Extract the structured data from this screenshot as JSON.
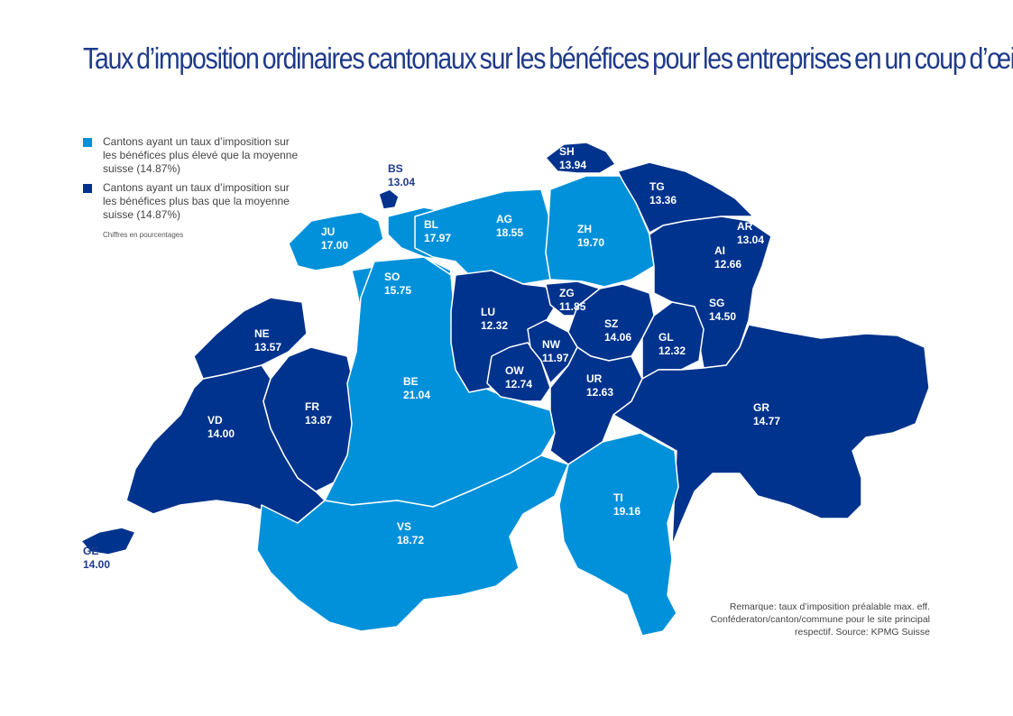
{
  "title": "Taux d’imposition ordinaires cantonaux sur les bénéfices pour les entreprises en un coup d’œil",
  "colors": {
    "higher": "#0091da",
    "lower": "#00338d",
    "border": "#ffffff",
    "title": "#1e3a8a"
  },
  "legend": {
    "higher": "Cantons ayant un taux d’imposition sur les bénéfices plus élevé que la moyenne suisse (14.87%)",
    "lower": "Cantons ayant un taux d’imposition sur les bénéfices plus bas que la moyenne suisse (14.87%)",
    "note": "Chiffres en pourcentages"
  },
  "remark": "Remarque: taux d’imposition préalable max. eff. Conféderaton/canton/commune pour le site principal respectif. Source: KPMG Suisse",
  "cantons": [
    {
      "id": "GE",
      "code": "GE",
      "rate": "14.00",
      "category": "lower"
    },
    {
      "id": "VD",
      "code": "VD",
      "rate": "14.00",
      "category": "lower"
    },
    {
      "id": "NE",
      "code": "NE",
      "rate": "13.57",
      "category": "lower"
    },
    {
      "id": "FR",
      "code": "FR",
      "rate": "13.87",
      "category": "lower"
    },
    {
      "id": "JU",
      "code": "JU",
      "rate": "17.00",
      "category": "higher"
    },
    {
      "id": "BS",
      "code": "BS",
      "rate": "13.04",
      "category": "lower"
    },
    {
      "id": "BL",
      "code": "BL",
      "rate": "17.97",
      "category": "higher"
    },
    {
      "id": "SO",
      "code": "SO",
      "rate": "15.75",
      "category": "higher"
    },
    {
      "id": "AG",
      "code": "AG",
      "rate": "18.55",
      "category": "higher"
    },
    {
      "id": "BE",
      "code": "BE",
      "rate": "21.04",
      "category": "higher"
    },
    {
      "id": "VS",
      "code": "VS",
      "rate": "18.72",
      "category": "higher"
    },
    {
      "id": "LU",
      "code": "LU",
      "rate": "12.32",
      "category": "lower"
    },
    {
      "id": "OW",
      "code": "OW",
      "rate": "12.74",
      "category": "lower"
    },
    {
      "id": "NW",
      "code": "NW",
      "rate": "11.97",
      "category": "lower"
    },
    {
      "id": "ZG",
      "code": "ZG",
      "rate": "11.85",
      "category": "lower"
    },
    {
      "id": "ZH",
      "code": "ZH",
      "rate": "19.70",
      "category": "higher"
    },
    {
      "id": "SH",
      "code": "SH",
      "rate": "13.94",
      "category": "lower"
    },
    {
      "id": "TG",
      "code": "TG",
      "rate": "13.36",
      "category": "lower"
    },
    {
      "id": "AR",
      "code": "AR",
      "rate": "13.04",
      "category": "lower"
    },
    {
      "id": "AI",
      "code": "AI",
      "rate": "12.66",
      "category": "lower"
    },
    {
      "id": "SG",
      "code": "SG",
      "rate": "14.50",
      "category": "lower"
    },
    {
      "id": "SZ",
      "code": "SZ",
      "rate": "14.06",
      "category": "lower"
    },
    {
      "id": "GL",
      "code": "GL",
      "rate": "12.32",
      "category": "lower"
    },
    {
      "id": "UR",
      "code": "UR",
      "rate": "12.63",
      "category": "lower"
    },
    {
      "id": "GR",
      "code": "GR",
      "rate": "14.77",
      "category": "lower"
    },
    {
      "id": "TI",
      "code": "TI",
      "rate": "19.16",
      "category": "higher"
    }
  ]
}
